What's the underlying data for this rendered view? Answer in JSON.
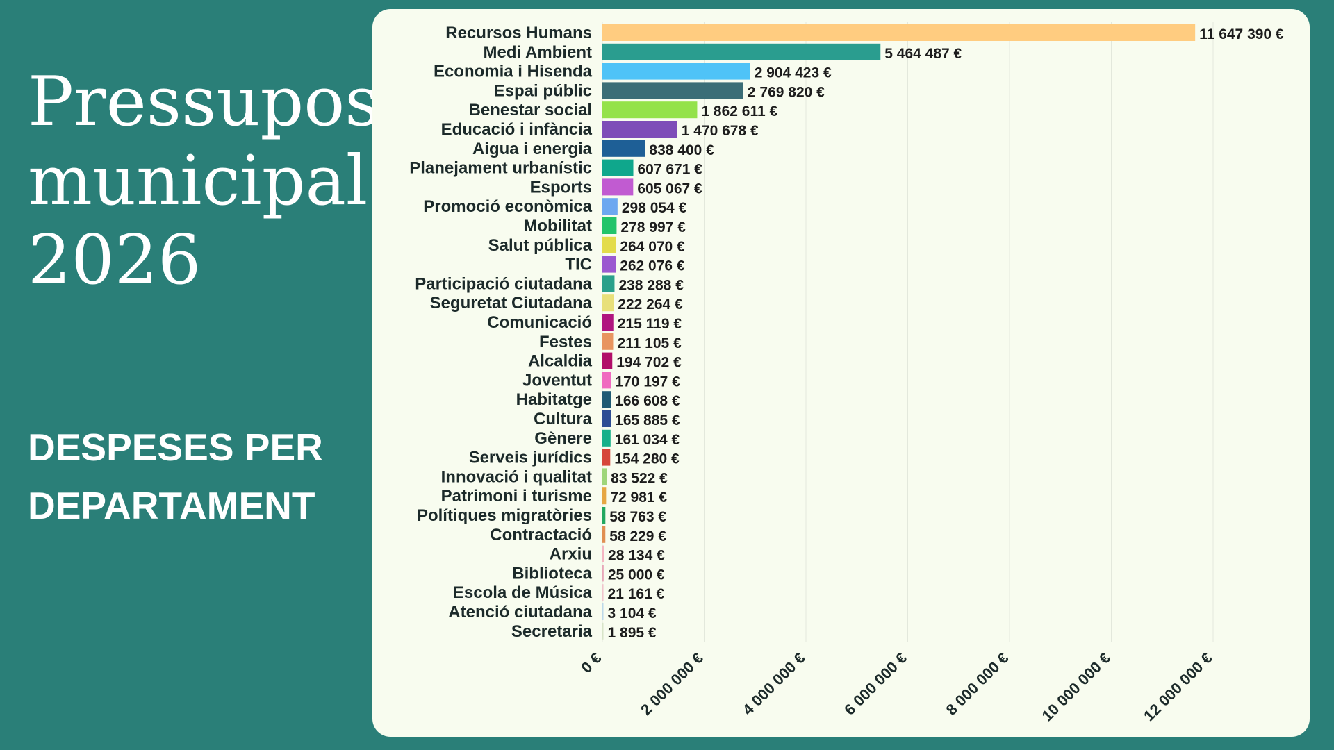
{
  "header": {
    "title_lines": [
      "Pressupost",
      "municipal",
      "2026"
    ],
    "subtitle_lines": [
      "DESPESES PER",
      "DEPARTAMENT"
    ]
  },
  "chart_data": {
    "type": "bar",
    "orientation": "horizontal",
    "currency_suffix": " €",
    "xlim": [
      0,
      12000000
    ],
    "xticks": [
      0,
      2000000,
      4000000,
      6000000,
      8000000,
      10000000,
      12000000
    ],
    "xtick_labels": [
      "0 €",
      "2 000 000 €",
      "4 000 000 €",
      "6 000 000 €",
      "8 000 000 €",
      "10 000 000 €",
      "12 000 000 €"
    ],
    "grid": "vertical",
    "categories": [
      "Recursos Humans",
      "Medi Ambient",
      "Economia i Hisenda",
      "Espai públic",
      "Benestar social",
      "Educació i infància",
      "Aigua i energia",
      "Planejament urbanístic",
      "Esports",
      "Promoció econòmica",
      "Mobilitat",
      "Salut pública",
      "TIC",
      "Participació ciutadana",
      "Seguretat Ciutadana",
      "Comunicació",
      "Festes",
      "Alcaldia",
      "Joventut",
      "Habitatge",
      "Cultura",
      "Gènere",
      "Serveis jurídics",
      "Innovació i qualitat",
      "Patrimoni i turisme",
      "Polítiques migratòries",
      "Contractació",
      "Arxiu",
      "Biblioteca",
      "Escola de Música",
      "Atenció ciutadana",
      "Secretaria"
    ],
    "values": [
      11647390,
      5464487,
      2904423,
      2769820,
      1862611,
      1470678,
      838400,
      607671,
      605067,
      298054,
      278997,
      264070,
      262076,
      238288,
      222264,
      215119,
      211105,
      194702,
      170197,
      166608,
      165885,
      161034,
      154280,
      83522,
      72981,
      58763,
      58229,
      28134,
      25000,
      21161,
      3104,
      1895
    ],
    "value_labels": [
      "11 647 390 €",
      "5 464 487 €",
      "2 904 423 €",
      "2 769 820 €",
      "1 862 611 €",
      "1 470 678 €",
      "838 400 €",
      "607 671 €",
      "605 067 €",
      "298 054 €",
      "278 997 €",
      "264 070 €",
      "262 076 €",
      "238 288 €",
      "222 264 €",
      "215 119 €",
      "211 105 €",
      "194 702 €",
      "170 197 €",
      "166 608 €",
      "165 885 €",
      "161 034 €",
      "154 280 €",
      "83 522 €",
      "72 981 €",
      "58 763 €",
      "58 229 €",
      "28 134 €",
      "25 000 €",
      "21 161 €",
      "3 104 €",
      "1 895 €"
    ],
    "colors": [
      "#ffcc80",
      "#2a9d8f",
      "#4fc3f7",
      "#3b6e77",
      "#94e24a",
      "#7e4db8",
      "#1e5f96",
      "#0fa78c",
      "#c15bd1",
      "#6ca8f0",
      "#22c46a",
      "#e3dc4b",
      "#9b59d0",
      "#2aa08a",
      "#e8e07a",
      "#b0157f",
      "#e89560",
      "#b10e68",
      "#f06bc0",
      "#1f5b74",
      "#2d4d94",
      "#17b08a",
      "#d6463a",
      "#9fd67a",
      "#e6a743",
      "#22a860",
      "#e08f52",
      "#f4b6c2",
      "#e7a6b8",
      "#f0c4cc",
      "#bcd8e8",
      "#d8e4c8"
    ]
  }
}
